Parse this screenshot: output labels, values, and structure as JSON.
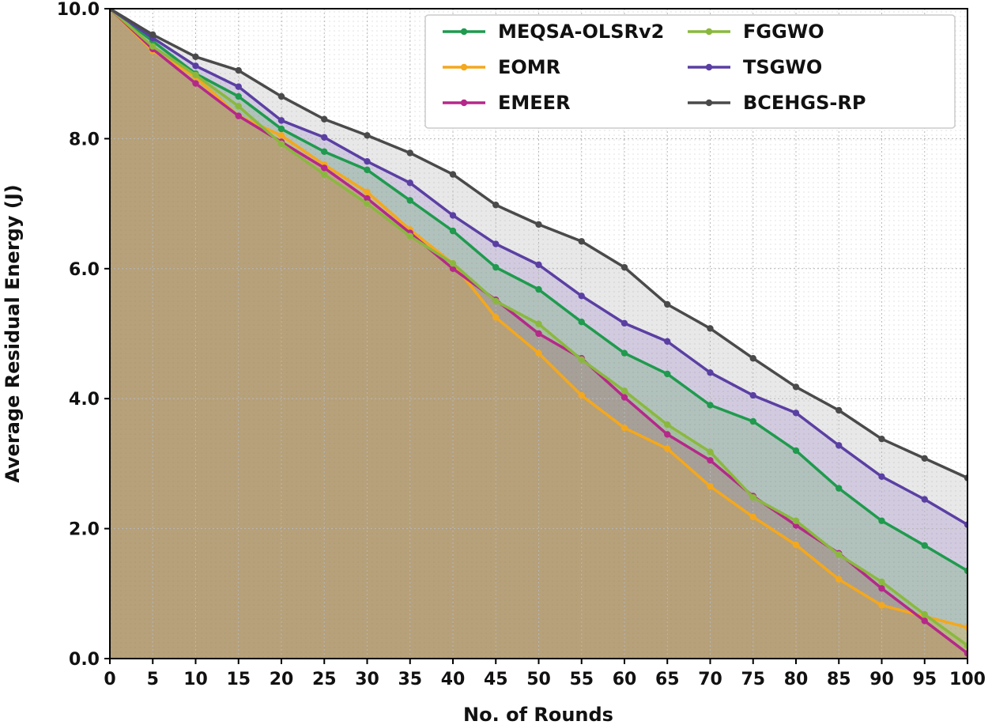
{
  "chart_data": {
    "type": "line",
    "title": "",
    "xlabel": "No. of Rounds",
    "ylabel": "Average Residual Energy (J)",
    "xlim": [
      0,
      100
    ],
    "ylim": [
      0,
      10
    ],
    "x": [
      0,
      5,
      10,
      15,
      20,
      25,
      30,
      35,
      40,
      45,
      50,
      55,
      60,
      65,
      70,
      75,
      80,
      85,
      90,
      95,
      100
    ],
    "x_ticks": [
      "0",
      "5",
      "10",
      "15",
      "20",
      "25",
      "30",
      "35",
      "40",
      "45",
      "50",
      "55",
      "60",
      "65",
      "70",
      "75",
      "80",
      "85",
      "90",
      "95",
      "100"
    ],
    "y_ticks": [
      "0.0",
      "2.0",
      "4.0",
      "6.0",
      "8.0",
      "10.0"
    ],
    "grid": true,
    "legend_position": "top-right",
    "series": [
      {
        "name": "MEQSA-OLSRv2",
        "color": "#1f9a4e",
        "fill": "#2ca02c",
        "values": [
          10.0,
          9.5,
          9.0,
          8.65,
          8.15,
          7.8,
          7.52,
          7.05,
          6.58,
          6.02,
          5.68,
          5.18,
          4.7,
          4.38,
          3.9,
          3.65,
          3.2,
          2.62,
          2.12,
          1.74,
          1.35
        ]
      },
      {
        "name": "EOMR",
        "color": "#f4a81d",
        "fill": "#ffa500",
        "values": [
          10.0,
          9.35,
          8.95,
          8.35,
          8.05,
          7.6,
          7.18,
          6.6,
          6.08,
          5.25,
          4.7,
          4.05,
          3.55,
          3.23,
          2.65,
          2.18,
          1.75,
          1.22,
          0.82,
          0.65,
          0.48
        ]
      },
      {
        "name": "EMEER",
        "color": "#b5288a",
        "fill": "#aa2a7a",
        "values": [
          10.0,
          9.38,
          8.85,
          8.35,
          7.95,
          7.55,
          7.08,
          6.55,
          6.0,
          5.52,
          5.0,
          4.62,
          4.02,
          3.45,
          3.05,
          2.5,
          2.05,
          1.62,
          1.08,
          0.58,
          0.08
        ]
      },
      {
        "name": "FGGWO",
        "color": "#8ab83f",
        "fill": "#7ab33a",
        "values": [
          10.0,
          9.42,
          8.98,
          8.5,
          7.92,
          7.45,
          7.0,
          6.5,
          6.08,
          5.5,
          5.15,
          4.6,
          4.12,
          3.6,
          3.18,
          2.48,
          2.12,
          1.6,
          1.18,
          0.68,
          0.2
        ]
      },
      {
        "name": "TSGWO",
        "color": "#5a3fa3",
        "fill": "#7b5cc4",
        "values": [
          10.0,
          9.55,
          9.12,
          8.8,
          8.28,
          8.02,
          7.65,
          7.32,
          6.82,
          6.38,
          6.06,
          5.58,
          5.16,
          4.88,
          4.4,
          4.05,
          3.78,
          3.28,
          2.8,
          2.45,
          2.06
        ]
      },
      {
        "name": "BCEHGS-RP",
        "color": "#4a4a4a",
        "fill": "#8a8a8a",
        "values": [
          10.0,
          9.6,
          9.26,
          9.05,
          8.65,
          8.3,
          8.05,
          7.78,
          7.45,
          6.98,
          6.68,
          6.42,
          6.02,
          5.45,
          5.08,
          4.62,
          4.18,
          3.82,
          3.38,
          3.08,
          2.78
        ]
      }
    ]
  }
}
